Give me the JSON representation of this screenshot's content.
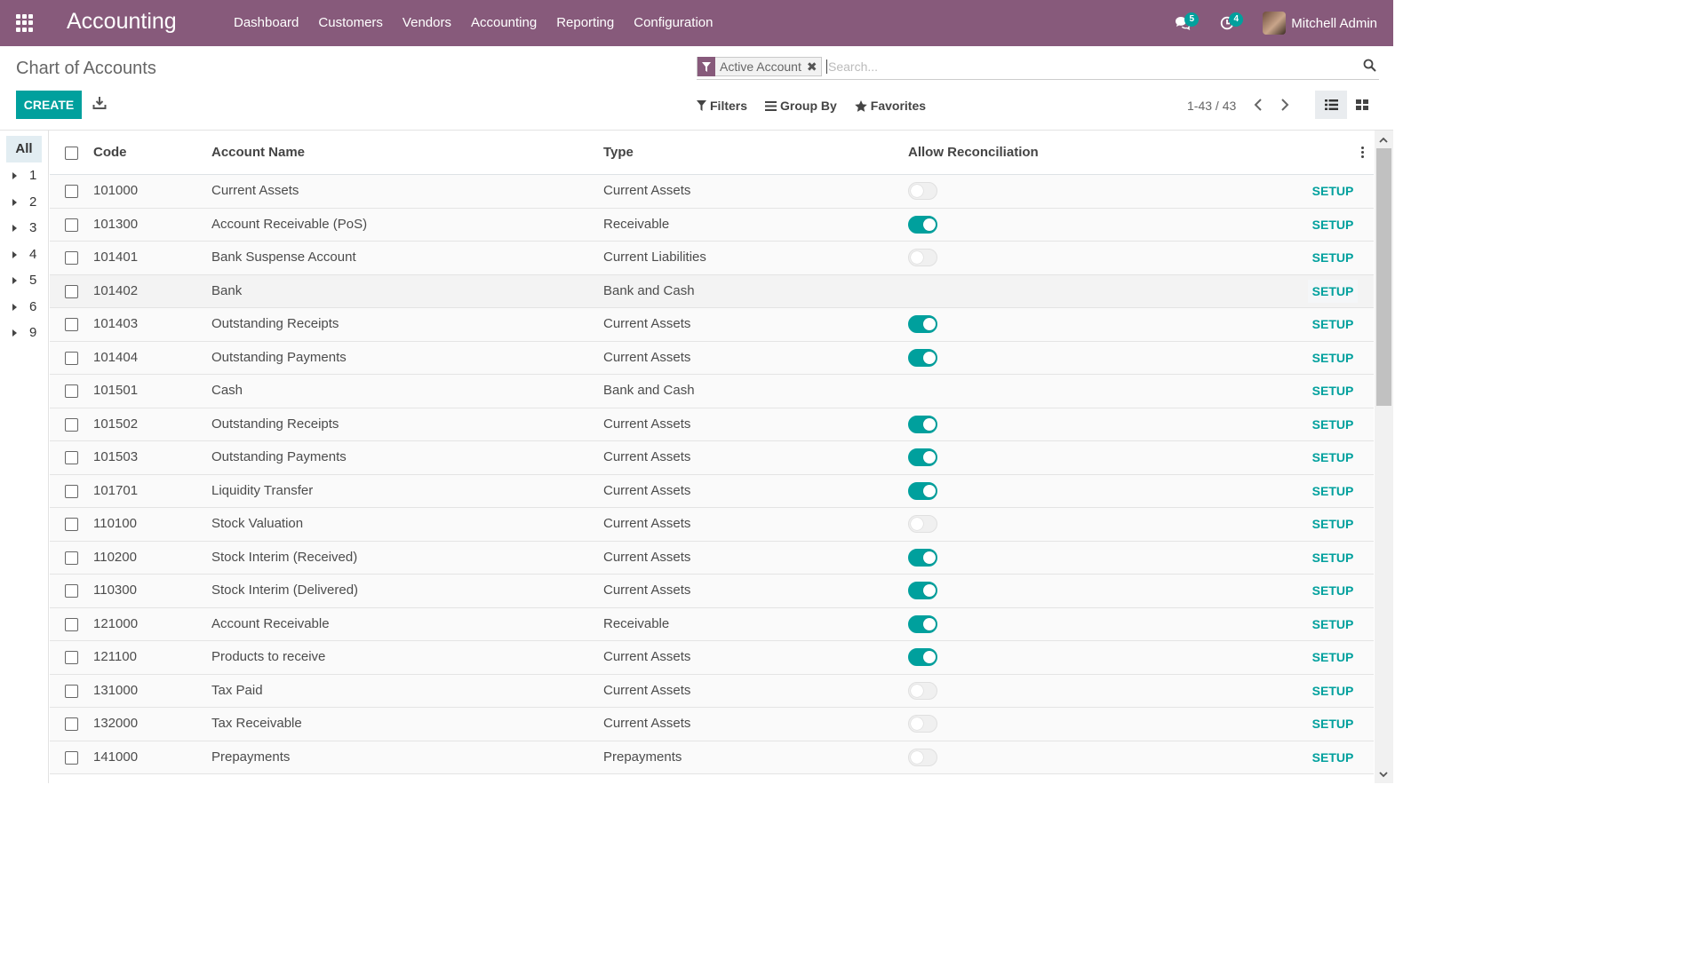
{
  "navbar": {
    "brand": "Accounting",
    "menu": [
      "Dashboard",
      "Customers",
      "Vendors",
      "Accounting",
      "Reporting",
      "Configuration"
    ],
    "messages_count": "5",
    "activities_count": "4",
    "user_name": "Mitchell Admin",
    "color": "#875a7b"
  },
  "control_panel": {
    "breadcrumb": "Chart of Accounts",
    "create_label": "CREATE",
    "facet_label": "Active Account",
    "search_placeholder": "Search...",
    "filters_label": "Filters",
    "group_by_label": "Group By",
    "favorites_label": "Favorites",
    "pager": "1-43 / 43"
  },
  "side_panel": {
    "all_label": "All",
    "groups": [
      "1",
      "2",
      "3",
      "4",
      "5",
      "6",
      "9"
    ]
  },
  "table": {
    "headers": {
      "code": "Code",
      "name": "Account Name",
      "type": "Type",
      "reconcile": "Allow Reconciliation"
    },
    "setup_label": "SETUP",
    "rows": [
      {
        "code": "101000",
        "name": "Current Assets",
        "type": "Current Assets",
        "reconcile": false
      },
      {
        "code": "101300",
        "name": "Account Receivable (PoS)",
        "type": "Receivable",
        "reconcile": true
      },
      {
        "code": "101401",
        "name": "Bank Suspense Account",
        "type": "Current Liabilities",
        "reconcile": false
      },
      {
        "code": "101402",
        "name": "Bank",
        "type": "Bank and Cash",
        "reconcile": null
      },
      {
        "code": "101403",
        "name": "Outstanding Receipts",
        "type": "Current Assets",
        "reconcile": true
      },
      {
        "code": "101404",
        "name": "Outstanding Payments",
        "type": "Current Assets",
        "reconcile": true
      },
      {
        "code": "101501",
        "name": "Cash",
        "type": "Bank and Cash",
        "reconcile": null
      },
      {
        "code": "101502",
        "name": "Outstanding Receipts",
        "type": "Current Assets",
        "reconcile": true
      },
      {
        "code": "101503",
        "name": "Outstanding Payments",
        "type": "Current Assets",
        "reconcile": true
      },
      {
        "code": "101701",
        "name": "Liquidity Transfer",
        "type": "Current Assets",
        "reconcile": true
      },
      {
        "code": "110100",
        "name": "Stock Valuation",
        "type": "Current Assets",
        "reconcile": false
      },
      {
        "code": "110200",
        "name": "Stock Interim (Received)",
        "type": "Current Assets",
        "reconcile": true
      },
      {
        "code": "110300",
        "name": "Stock Interim (Delivered)",
        "type": "Current Assets",
        "reconcile": true
      },
      {
        "code": "121000",
        "name": "Account Receivable",
        "type": "Receivable",
        "reconcile": true
      },
      {
        "code": "121100",
        "name": "Products to receive",
        "type": "Current Assets",
        "reconcile": true
      },
      {
        "code": "131000",
        "name": "Tax Paid",
        "type": "Current Assets",
        "reconcile": false
      },
      {
        "code": "132000",
        "name": "Tax Receivable",
        "type": "Current Assets",
        "reconcile": false
      },
      {
        "code": "141000",
        "name": "Prepayments",
        "type": "Prepayments",
        "reconcile": false
      }
    ]
  },
  "colors": {
    "accent": "#00a09d",
    "brand": "#875a7b"
  }
}
